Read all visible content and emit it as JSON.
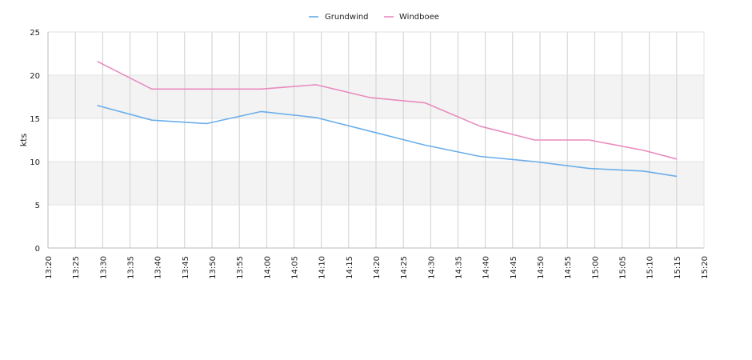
{
  "chart_data": {
    "type": "line",
    "title": "",
    "ylabel": "kts",
    "xlabel": "",
    "ylim": [
      0,
      25
    ],
    "xlim": [
      "13:20",
      "15:20"
    ],
    "yticks": [
      "0",
      "5",
      "10",
      "15",
      "20",
      "25"
    ],
    "xticks": [
      "13:20",
      "13:25",
      "13:30",
      "13:35",
      "13:40",
      "13:45",
      "13:50",
      "13:55",
      "14:00",
      "14:05",
      "14:10",
      "14:15",
      "14:20",
      "14:25",
      "14:30",
      "14:35",
      "14:40",
      "14:45",
      "14:50",
      "14:55",
      "15:00",
      "15:05",
      "15:10",
      "15:15",
      "15:20"
    ],
    "grid": true,
    "legend_position": "top-center",
    "series": [
      {
        "name": "Grundwind",
        "color": "#6aaeea",
        "x": [
          "13:29",
          "13:39",
          "13:49",
          "13:59",
          "14:09",
          "14:19",
          "14:29",
          "14:39",
          "14:49",
          "14:59",
          "15:09",
          "15:15"
        ],
        "values": [
          16.5,
          14.8,
          14.4,
          15.8,
          15.1,
          13.5,
          11.9,
          10.6,
          10.0,
          9.2,
          8.9,
          8.3
        ]
      },
      {
        "name": "Windboee",
        "color": "#e88bbe",
        "x": [
          "13:29",
          "13:39",
          "13:49",
          "13:59",
          "14:09",
          "14:19",
          "14:29",
          "14:39",
          "14:49",
          "14:59",
          "15:09",
          "15:15"
        ],
        "values": [
          21.6,
          18.4,
          18.4,
          18.4,
          18.9,
          17.4,
          16.8,
          14.1,
          12.5,
          12.5,
          11.3,
          10.3
        ]
      }
    ]
  }
}
